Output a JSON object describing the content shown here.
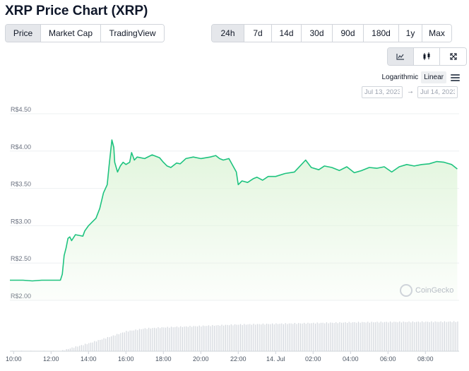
{
  "header": {
    "title": "XRP Price Chart (XRP)"
  },
  "type_tabs": [
    {
      "label": "Price",
      "active": true
    },
    {
      "label": "Market Cap",
      "active": false
    },
    {
      "label": "TradingView",
      "active": false
    }
  ],
  "range_tabs": [
    {
      "label": "24h",
      "active": true
    },
    {
      "label": "7d",
      "active": false
    },
    {
      "label": "14d",
      "active": false
    },
    {
      "label": "30d",
      "active": false
    },
    {
      "label": "90d",
      "active": false
    },
    {
      "label": "180d",
      "active": false
    },
    {
      "label": "1y",
      "active": false
    },
    {
      "label": "Max",
      "active": false
    }
  ],
  "view_tabs": [
    {
      "icon": "line-chart-icon",
      "active": true
    },
    {
      "icon": "candlestick-icon",
      "active": false
    },
    {
      "icon": "fullscreen-icon",
      "active": false
    }
  ],
  "scale": {
    "logarithmic_label": "Logarithmic",
    "linear_label": "Linear",
    "selected": "Linear"
  },
  "date_range": {
    "from": "Jul 13, 2023",
    "to": "Jul 14, 2023"
  },
  "watermark": {
    "text": "CoinGecko"
  },
  "colors": {
    "line": "#1ec37f",
    "fill": "#e1f5dc",
    "volume": "#d3d7dd",
    "grid": "#eef0f2"
  },
  "chart_data": {
    "type": "line",
    "ylabel_ticks": [
      "R$2.00",
      "R$2.50",
      "R$3.00",
      "R$3.50",
      "R$4.00",
      "R$4.50"
    ],
    "ylim": [
      2.0,
      4.5
    ],
    "y_ticks": [
      2.0,
      2.5,
      3.0,
      3.5,
      4.0,
      4.5
    ],
    "xlim": [
      9.8,
      33.8
    ],
    "x_ticks": [
      {
        "t": 10,
        "label": "10:00"
      },
      {
        "t": 12,
        "label": "12:00"
      },
      {
        "t": 14,
        "label": "14:00"
      },
      {
        "t": 16,
        "label": "16:00"
      },
      {
        "t": 18,
        "label": "18:00"
      },
      {
        "t": 20,
        "label": "20:00"
      },
      {
        "t": 22,
        "label": "22:00"
      },
      {
        "t": 24,
        "label": "14. Jul"
      },
      {
        "t": 26,
        "label": "02:00"
      },
      {
        "t": 28,
        "label": "04:00"
      },
      {
        "t": 30,
        "label": "06:00"
      },
      {
        "t": 32,
        "label": "08:00"
      }
    ],
    "grid": true,
    "price": [
      [
        9.8,
        2.27
      ],
      [
        10.5,
        2.27
      ],
      [
        11.0,
        2.26
      ],
      [
        11.5,
        2.27
      ],
      [
        12.0,
        2.27
      ],
      [
        12.5,
        2.27
      ],
      [
        12.6,
        2.35
      ],
      [
        12.7,
        2.6
      ],
      [
        12.8,
        2.7
      ],
      [
        12.9,
        2.83
      ],
      [
        13.0,
        2.85
      ],
      [
        13.1,
        2.8
      ],
      [
        13.3,
        2.88
      ],
      [
        13.5,
        2.87
      ],
      [
        13.7,
        2.86
      ],
      [
        13.8,
        2.93
      ],
      [
        14.0,
        3.0
      ],
      [
        14.2,
        3.05
      ],
      [
        14.4,
        3.1
      ],
      [
        14.6,
        3.23
      ],
      [
        14.8,
        3.44
      ],
      [
        15.0,
        3.55
      ],
      [
        15.1,
        3.8
      ],
      [
        15.25,
        4.15
      ],
      [
        15.35,
        4.05
      ],
      [
        15.4,
        3.85
      ],
      [
        15.55,
        3.72
      ],
      [
        15.7,
        3.8
      ],
      [
        15.85,
        3.85
      ],
      [
        16.0,
        3.82
      ],
      [
        16.2,
        3.85
      ],
      [
        16.3,
        3.98
      ],
      [
        16.45,
        3.88
      ],
      [
        16.6,
        3.92
      ],
      [
        17.0,
        3.9
      ],
      [
        17.4,
        3.95
      ],
      [
        17.8,
        3.91
      ],
      [
        18.0,
        3.85
      ],
      [
        18.2,
        3.8
      ],
      [
        18.4,
        3.78
      ],
      [
        18.7,
        3.84
      ],
      [
        18.9,
        3.83
      ],
      [
        19.2,
        3.9
      ],
      [
        19.6,
        3.92
      ],
      [
        20.0,
        3.9
      ],
      [
        20.5,
        3.92
      ],
      [
        20.8,
        3.94
      ],
      [
        21.0,
        3.9
      ],
      [
        21.2,
        3.88
      ],
      [
        21.5,
        3.9
      ],
      [
        21.9,
        3.72
      ],
      [
        22.0,
        3.55
      ],
      [
        22.2,
        3.6
      ],
      [
        22.5,
        3.58
      ],
      [
        22.8,
        3.63
      ],
      [
        23.0,
        3.65
      ],
      [
        23.3,
        3.61
      ],
      [
        23.6,
        3.66
      ],
      [
        24.0,
        3.66
      ],
      [
        24.5,
        3.7
      ],
      [
        25.0,
        3.72
      ],
      [
        25.3,
        3.8
      ],
      [
        25.6,
        3.88
      ],
      [
        25.9,
        3.78
      ],
      [
        26.3,
        3.75
      ],
      [
        26.6,
        3.8
      ],
      [
        27.0,
        3.78
      ],
      [
        27.4,
        3.74
      ],
      [
        27.8,
        3.79
      ],
      [
        28.2,
        3.71
      ],
      [
        28.6,
        3.74
      ],
      [
        29.0,
        3.78
      ],
      [
        29.4,
        3.77
      ],
      [
        29.8,
        3.79
      ],
      [
        30.2,
        3.72
      ],
      [
        30.6,
        3.79
      ],
      [
        31.0,
        3.82
      ],
      [
        31.4,
        3.8
      ],
      [
        31.8,
        3.82
      ],
      [
        32.2,
        3.83
      ],
      [
        32.6,
        3.86
      ],
      [
        33.0,
        3.85
      ],
      [
        33.4,
        3.82
      ],
      [
        33.7,
        3.76
      ]
    ],
    "volume_level": [
      [
        9.8,
        0.0
      ],
      [
        12.5,
        0.0
      ],
      [
        13.0,
        0.08
      ],
      [
        14.0,
        0.22
      ],
      [
        15.0,
        0.38
      ],
      [
        16.0,
        0.55
      ],
      [
        17.0,
        0.63
      ],
      [
        18.0,
        0.66
      ],
      [
        20.0,
        0.7
      ],
      [
        22.0,
        0.74
      ],
      [
        24.0,
        0.76
      ],
      [
        26.0,
        0.78
      ],
      [
        28.0,
        0.8
      ],
      [
        30.0,
        0.81
      ],
      [
        33.8,
        0.82
      ]
    ]
  }
}
